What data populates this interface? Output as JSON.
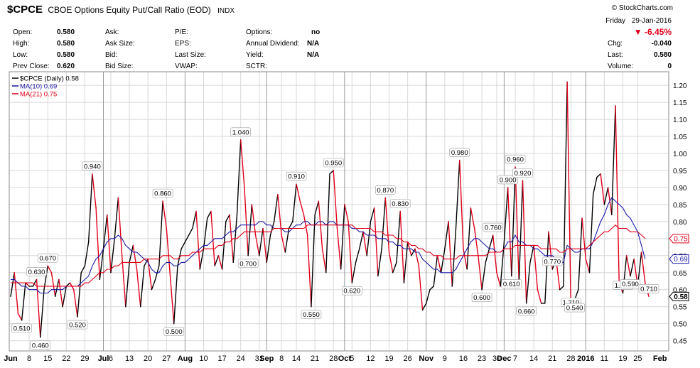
{
  "header": {
    "symbol": "$CPCE",
    "name": "CBOE Options Equity Put/Call Ratio (EOD)",
    "exchange": "INDX",
    "brand": "© StockCharts.com",
    "day": "Friday",
    "date": "29-Jan-2016",
    "change_pct": "-6.45%",
    "chg_label": "Chg:",
    "chg_value": "-0.040",
    "last_label": "Last:",
    "last_value": "0.580",
    "volume_label": "Volume:",
    "volume_value": "0",
    "open_label": "Open:",
    "open_value": "0.580",
    "high_label": "High:",
    "high_value": "0.580",
    "low_label": "Low:",
    "low_value": "0.580",
    "prev_label": "Prev Close:",
    "prev_value": "0.620",
    "ask_label": "Ask:",
    "asksize_label": "Ask Size:",
    "bid_label": "Bid:",
    "bidsize_label": "Bid Size:",
    "pe_label": "P/E:",
    "eps_label": "EPS:",
    "lastsize_label": "Last Size:",
    "vwap_label": "VWAP:",
    "options_label": "Options:",
    "options_value": "no",
    "annual_div_label": "Annual Dividend:",
    "annual_div_value": "N/A",
    "yield_label": "Yield:",
    "yield_value": "N/A",
    "sctr_label": "SCTR:"
  },
  "colors": {
    "price": "#000000",
    "down": "#e0001a",
    "ma10": "#1a1aa8",
    "ma21": "#e0001a",
    "grid": "#d8d8d8"
  },
  "chart_data": {
    "type": "line",
    "legend": [
      {
        "label": "$CPCE (Daily) 0.58",
        "color": "#000000"
      },
      {
        "label": "MA(10) 0.69",
        "color": "#1a1aa8"
      },
      {
        "label": "MA(21) 0.75",
        "color": "#e0001a"
      }
    ],
    "legend_position": "top-left",
    "ylim": [
      0.42,
      1.24
    ],
    "y_ticks": [
      "0.45",
      "0.50",
      "0.55",
      "0.60",
      "0.65",
      "0.70",
      "0.75",
      "0.80",
      "0.85",
      "0.90",
      "0.95",
      "1.00",
      "1.05",
      "1.10",
      "1.15",
      "1.20"
    ],
    "x_ticks": [
      {
        "label": "Jun",
        "i": 0,
        "bold": true
      },
      {
        "label": "8",
        "i": 5
      },
      {
        "label": "15",
        "i": 10
      },
      {
        "label": "22",
        "i": 15
      },
      {
        "label": "29",
        "i": 20
      },
      {
        "label": "Jul",
        "i": 25,
        "bold": true
      },
      {
        "label": "6",
        "i": 27
      },
      {
        "label": "13",
        "i": 32
      },
      {
        "label": "20",
        "i": 37
      },
      {
        "label": "27",
        "i": 42
      },
      {
        "label": "Aug",
        "i": 47,
        "bold": true
      },
      {
        "label": "10",
        "i": 52
      },
      {
        "label": "17",
        "i": 57
      },
      {
        "label": "24",
        "i": 62
      },
      {
        "label": "31",
        "i": 67
      },
      {
        "label": "Sep",
        "i": 69,
        "bold": true
      },
      {
        "label": "8",
        "i": 73
      },
      {
        "label": "14",
        "i": 77
      },
      {
        "label": "21",
        "i": 82
      },
      {
        "label": "28",
        "i": 87
      },
      {
        "label": "Oct",
        "i": 90,
        "bold": true
      },
      {
        "label": "5",
        "i": 92
      },
      {
        "label": "12",
        "i": 97
      },
      {
        "label": "19",
        "i": 102
      },
      {
        "label": "26",
        "i": 107
      },
      {
        "label": "Nov",
        "i": 112,
        "bold": true
      },
      {
        "label": "9",
        "i": 117
      },
      {
        "label": "16",
        "i": 122
      },
      {
        "label": "23",
        "i": 127
      },
      {
        "label": "30",
        "i": 131
      },
      {
        "label": "Dec",
        "i": 133,
        "bold": true
      },
      {
        "label": "7",
        "i": 136
      },
      {
        "label": "14",
        "i": 141
      },
      {
        "label": "21",
        "i": 146
      },
      {
        "label": "28",
        "i": 151
      },
      {
        "label": "2016",
        "i": 155,
        "bold": true
      },
      {
        "label": "11",
        "i": 160
      },
      {
        "label": "19",
        "i": 165
      },
      {
        "label": "25",
        "i": 169
      },
      {
        "label": "Feb",
        "i": 175,
        "bold": true
      }
    ],
    "month_lines": [
      25,
      47,
      69,
      90,
      112,
      133,
      155
    ],
    "series": [
      {
        "name": "$CPCE (Daily)",
        "start_date": "2015-06-01",
        "values": [
          0.58,
          0.65,
          0.53,
          0.51,
          0.62,
          0.61,
          0.61,
          0.63,
          0.46,
          0.6,
          0.67,
          0.65,
          0.58,
          0.63,
          0.55,
          0.61,
          0.62,
          0.6,
          0.52,
          0.65,
          0.67,
          0.74,
          0.94,
          0.84,
          0.63,
          0.72,
          0.82,
          0.65,
          0.75,
          0.87,
          0.7,
          0.55,
          0.68,
          0.73,
          0.66,
          0.55,
          0.67,
          0.69,
          0.6,
          0.63,
          0.67,
          0.86,
          0.78,
          0.64,
          0.5,
          0.67,
          0.72,
          0.74,
          0.76,
          0.78,
          0.83,
          0.66,
          0.72,
          0.81,
          0.83,
          0.67,
          0.7,
          0.66,
          0.8,
          0.82,
          0.68,
          0.82,
          1.04,
          0.9,
          0.7,
          0.85,
          0.76,
          0.7,
          0.78,
          0.68,
          0.76,
          0.8,
          0.88,
          0.76,
          0.71,
          0.78,
          0.8,
          0.91,
          0.86,
          0.82,
          0.76,
          0.55,
          0.82,
          0.86,
          0.72,
          0.65,
          0.94,
          0.95,
          0.78,
          0.66,
          0.85,
          0.8,
          0.62,
          0.68,
          0.72,
          0.77,
          0.7,
          0.8,
          0.84,
          0.64,
          0.72,
          0.87,
          0.71,
          0.65,
          0.68,
          0.83,
          0.62,
          0.74,
          0.7,
          0.72,
          0.67,
          0.54,
          0.56,
          0.6,
          0.61,
          0.7,
          0.65,
          0.72,
          0.8,
          0.61,
          0.78,
          0.98,
          0.72,
          0.66,
          0.84,
          0.78,
          0.7,
          0.6,
          0.68,
          0.72,
          0.76,
          0.65,
          0.61,
          0.74,
          0.9,
          0.64,
          0.96,
          0.62,
          0.92,
          0.56,
          0.68,
          0.73,
          0.6,
          0.56,
          0.56,
          0.77,
          0.66,
          0.69,
          0.6,
          0.61,
          1.21,
          0.54,
          0.57,
          0.6,
          0.81,
          0.69,
          0.65,
          0.88,
          0.93,
          0.94,
          0.85,
          0.9,
          0.82,
          1.14,
          0.62,
          0.59,
          0.7,
          0.64,
          0.69,
          0.61,
          0.71,
          0.62,
          0.58
        ]
      },
      {
        "name": "MA(10)",
        "values": [
          0.63,
          0.63,
          0.62,
          0.61,
          0.61,
          0.6,
          0.6,
          0.6,
          0.59,
          0.59,
          0.59,
          0.6,
          0.6,
          0.6,
          0.6,
          0.61,
          0.61,
          0.61,
          0.61,
          0.62,
          0.63,
          0.64,
          0.67,
          0.69,
          0.7,
          0.72,
          0.74,
          0.75,
          0.75,
          0.76,
          0.75,
          0.73,
          0.72,
          0.71,
          0.71,
          0.7,
          0.69,
          0.68,
          0.66,
          0.65,
          0.65,
          0.67,
          0.68,
          0.68,
          0.67,
          0.67,
          0.68,
          0.68,
          0.69,
          0.7,
          0.71,
          0.72,
          0.73,
          0.73,
          0.74,
          0.75,
          0.75,
          0.75,
          0.76,
          0.77,
          0.77,
          0.78,
          0.79,
          0.79,
          0.79,
          0.79,
          0.79,
          0.8,
          0.8,
          0.79,
          0.79,
          0.78,
          0.78,
          0.78,
          0.77,
          0.77,
          0.78,
          0.79,
          0.79,
          0.8,
          0.8,
          0.79,
          0.79,
          0.8,
          0.8,
          0.79,
          0.8,
          0.8,
          0.79,
          0.79,
          0.79,
          0.79,
          0.78,
          0.78,
          0.77,
          0.77,
          0.76,
          0.76,
          0.76,
          0.75,
          0.75,
          0.75,
          0.74,
          0.74,
          0.73,
          0.73,
          0.72,
          0.72,
          0.72,
          0.71,
          0.71,
          0.69,
          0.68,
          0.67,
          0.66,
          0.66,
          0.65,
          0.65,
          0.65,
          0.65,
          0.66,
          0.68,
          0.7,
          0.72,
          0.74,
          0.75,
          0.75,
          0.74,
          0.73,
          0.72,
          0.72,
          0.71,
          0.71,
          0.72,
          0.74,
          0.74,
          0.76,
          0.74,
          0.74,
          0.73,
          0.73,
          0.72,
          0.72,
          0.71,
          0.7,
          0.7,
          0.7,
          0.69,
          0.68,
          0.68,
          0.73,
          0.72,
          0.71,
          0.71,
          0.72,
          0.72,
          0.72,
          0.74,
          0.77,
          0.8,
          0.82,
          0.85,
          0.87,
          0.86,
          0.85,
          0.84,
          0.82,
          0.81,
          0.79,
          0.77,
          0.73,
          0.69
        ]
      },
      {
        "name": "MA(21)",
        "values": [
          0.62,
          0.62,
          0.62,
          0.62,
          0.62,
          0.62,
          0.62,
          0.61,
          0.61,
          0.61,
          0.61,
          0.61,
          0.61,
          0.61,
          0.61,
          0.61,
          0.61,
          0.61,
          0.61,
          0.61,
          0.62,
          0.62,
          0.63,
          0.64,
          0.65,
          0.65,
          0.66,
          0.66,
          0.67,
          0.67,
          0.68,
          0.68,
          0.68,
          0.68,
          0.68,
          0.68,
          0.69,
          0.69,
          0.69,
          0.69,
          0.69,
          0.7,
          0.7,
          0.7,
          0.69,
          0.69,
          0.7,
          0.7,
          0.7,
          0.71,
          0.71,
          0.71,
          0.72,
          0.72,
          0.72,
          0.72,
          0.73,
          0.73,
          0.74,
          0.74,
          0.75,
          0.75,
          0.76,
          0.77,
          0.77,
          0.77,
          0.77,
          0.77,
          0.77,
          0.77,
          0.77,
          0.78,
          0.78,
          0.78,
          0.78,
          0.78,
          0.78,
          0.78,
          0.78,
          0.78,
          0.79,
          0.79,
          0.79,
          0.79,
          0.79,
          0.79,
          0.79,
          0.79,
          0.79,
          0.79,
          0.79,
          0.79,
          0.79,
          0.78,
          0.78,
          0.78,
          0.78,
          0.78,
          0.77,
          0.77,
          0.77,
          0.76,
          0.76,
          0.76,
          0.75,
          0.75,
          0.74,
          0.74,
          0.73,
          0.73,
          0.72,
          0.72,
          0.71,
          0.71,
          0.7,
          0.7,
          0.7,
          0.69,
          0.69,
          0.69,
          0.69,
          0.7,
          0.7,
          0.7,
          0.7,
          0.7,
          0.7,
          0.7,
          0.7,
          0.71,
          0.71,
          0.71,
          0.71,
          0.72,
          0.72,
          0.72,
          0.73,
          0.73,
          0.73,
          0.73,
          0.73,
          0.73,
          0.73,
          0.72,
          0.72,
          0.72,
          0.72,
          0.72,
          0.71,
          0.71,
          0.72,
          0.72,
          0.72,
          0.72,
          0.72,
          0.72,
          0.73,
          0.74,
          0.75,
          0.76,
          0.77,
          0.77,
          0.78,
          0.79,
          0.78,
          0.78,
          0.78,
          0.77,
          0.77,
          0.77,
          0.76,
          0.75
        ]
      }
    ],
    "annotations": [
      {
        "i": 3,
        "label": "0.510",
        "pos": "below"
      },
      {
        "i": 8,
        "label": "0.460",
        "pos": "below"
      },
      {
        "i": 7,
        "label": "0.630",
        "pos": "above"
      },
      {
        "i": 10,
        "label": "0.670",
        "pos": "above"
      },
      {
        "i": 18,
        "label": "0.520",
        "pos": "below"
      },
      {
        "i": 22,
        "label": "0.940",
        "pos": "above"
      },
      {
        "i": 41,
        "label": "0.860",
        "pos": "above"
      },
      {
        "i": 44,
        "label": "0.500",
        "pos": "below"
      },
      {
        "i": 62,
        "label": "1.040",
        "pos": "above"
      },
      {
        "i": 64,
        "label": "0.700",
        "pos": "below"
      },
      {
        "i": 77,
        "label": "0.910",
        "pos": "above"
      },
      {
        "i": 81,
        "label": "0.550",
        "pos": "below"
      },
      {
        "i": 87,
        "label": "0.950",
        "pos": "above"
      },
      {
        "i": 92,
        "label": "0.620",
        "pos": "below"
      },
      {
        "i": 101,
        "label": "0.870",
        "pos": "above"
      },
      {
        "i": 105,
        "label": "0.830",
        "pos": "above"
      },
      {
        "i": 121,
        "label": "0.980",
        "pos": "above"
      },
      {
        "i": 127,
        "label": "0.600",
        "pos": "below"
      },
      {
        "i": 130,
        "label": "0.760",
        "pos": "above"
      },
      {
        "i": 134,
        "label": "0.900",
        "pos": "above"
      },
      {
        "i": 135,
        "label": "0.610",
        "pos": "below"
      },
      {
        "i": 136,
        "label": "0.960",
        "pos": "above"
      },
      {
        "i": 139,
        "label": "0.660",
        "pos": "below"
      },
      {
        "i": 138,
        "label": "0.920",
        "pos": "above"
      },
      {
        "i": 146,
        "label": "0.770",
        "pos": "above"
      },
      {
        "i": 151,
        "label": "1.210",
        "pos": "above"
      },
      {
        "i": 152,
        "label": "0.540",
        "pos": "below"
      },
      {
        "i": 165,
        "label": "1.140",
        "pos": "above"
      },
      {
        "i": 167,
        "label": "0.590",
        "pos": "below"
      },
      {
        "i": 172,
        "label": "0.710",
        "pos": "above"
      }
    ],
    "last_markers": [
      {
        "label": "0.75",
        "color": "#e0001a",
        "value": 0.75
      },
      {
        "label": "0.69",
        "color": "#1a1aa8",
        "value": 0.69
      },
      {
        "label": "0.58",
        "color": "#000000",
        "value": 0.58,
        "bold": true
      }
    ]
  }
}
